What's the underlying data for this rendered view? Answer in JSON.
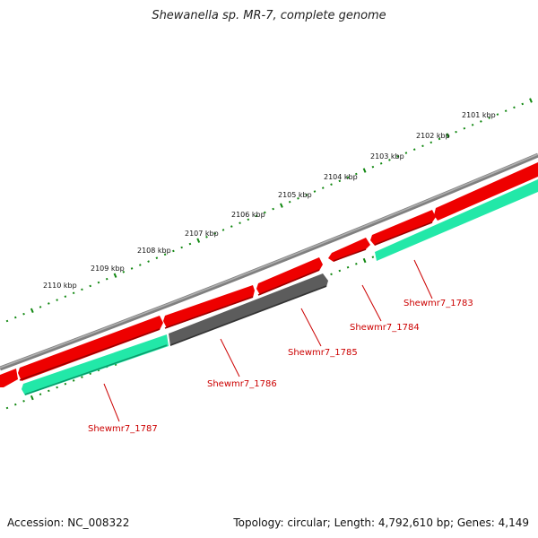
{
  "title": "Shewanella sp. MR-7, complete genome",
  "footer": {
    "accession": "Accession: NC_008322",
    "summary": "Topology: circular; Length: 4,792,610 bp; Genes: 4,149"
  },
  "colors": {
    "forward_cds": "#ee0000",
    "reverse_cds": "#22e8a8",
    "pseudo_gene": "#5c5c5c",
    "backbone": "#808080",
    "ticks": "#118811",
    "gene_label": "#cc0000"
  },
  "scale_labels": [
    "2101 kbp",
    "2102 kbp",
    "2103 kbp",
    "2104 kbp",
    "2105 kbp",
    "2106 kbp",
    "2107 kbp",
    "2108 kbp",
    "2109 kbp",
    "2110 kbp"
  ],
  "gene_labels": [
    "Shewmr7_1783",
    "Shewmr7_1784",
    "Shewmr7_1785",
    "Shewmr7_1786",
    "Shewmr7_1787"
  ]
}
